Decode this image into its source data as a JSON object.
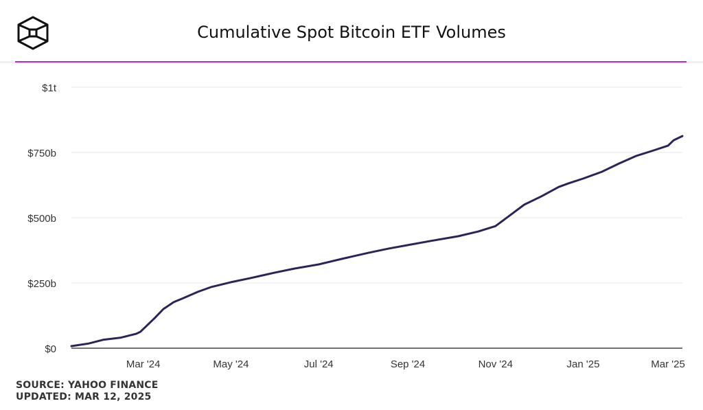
{
  "header": {
    "title": "Cumulative Spot Bitcoin ETF Volumes",
    "logo_icon": "cube-logo-icon"
  },
  "colors": {
    "accent_divider": "#b027e8",
    "line": "#2b2458",
    "grid": "#eeeeee",
    "axis": "#444444",
    "text": "#333333"
  },
  "footer": {
    "source": "SOURCE: YAHOO FINANCE",
    "updated": "UPDATED: MAR 12, 2025"
  },
  "chart_data": {
    "type": "line",
    "title": "Cumulative Spot Bitcoin ETF Volumes",
    "xlabel": "",
    "ylabel": "",
    "y_unit": "billions USD",
    "ylim": [
      0,
      1000
    ],
    "xlim": [
      "2024-01-11",
      "2025-03-11"
    ],
    "grid": true,
    "legend": "none",
    "y_ticks": [
      {
        "value": 0,
        "label": "$0"
      },
      {
        "value": 250,
        "label": "$250b"
      },
      {
        "value": 500,
        "label": "$500b"
      },
      {
        "value": 750,
        "label": "$750b"
      },
      {
        "value": 1000,
        "label": "$1t"
      }
    ],
    "x_ticks": [
      {
        "date": "2024-03-01",
        "label": "Mar '24"
      },
      {
        "date": "2024-05-01",
        "label": "May '24"
      },
      {
        "date": "2024-07-01",
        "label": "Jul '24"
      },
      {
        "date": "2024-09-01",
        "label": "Sep '24"
      },
      {
        "date": "2024-11-01",
        "label": "Nov '24"
      },
      {
        "date": "2025-01-01",
        "label": "Jan '25"
      },
      {
        "date": "2025-03-01",
        "label": "Mar '25"
      }
    ],
    "series": [
      {
        "name": "Cumulative Spot Bitcoin ETF Volume",
        "x": [
          "2024-01-11",
          "2024-01-23",
          "2024-02-02",
          "2024-02-14",
          "2024-02-25",
          "2024-02-28",
          "2024-03-03",
          "2024-03-09",
          "2024-03-15",
          "2024-03-22",
          "2024-03-29",
          "2024-04-08",
          "2024-04-17",
          "2024-05-01",
          "2024-05-14",
          "2024-05-31",
          "2024-06-14",
          "2024-07-01",
          "2024-07-17",
          "2024-08-05",
          "2024-08-19",
          "2024-09-01",
          "2024-09-17",
          "2024-10-06",
          "2024-10-20",
          "2024-11-01",
          "2024-11-12",
          "2024-11-21",
          "2024-12-03",
          "2024-12-15",
          "2024-12-22",
          "2025-01-01",
          "2025-01-14",
          "2025-01-26",
          "2025-02-07",
          "2025-02-19",
          "2025-03-01",
          "2025-03-05",
          "2025-03-11"
        ],
        "values": [
          8,
          18,
          32,
          40,
          55,
          63,
          84,
          116,
          150,
          176,
          192,
          216,
          234,
          253,
          268,
          289,
          305,
          321,
          342,
          366,
          382,
          395,
          411,
          429,
          447,
          468,
          513,
          550,
          582,
          618,
          632,
          650,
          676,
          708,
          737,
          758,
          776,
          797,
          813
        ]
      }
    ]
  }
}
